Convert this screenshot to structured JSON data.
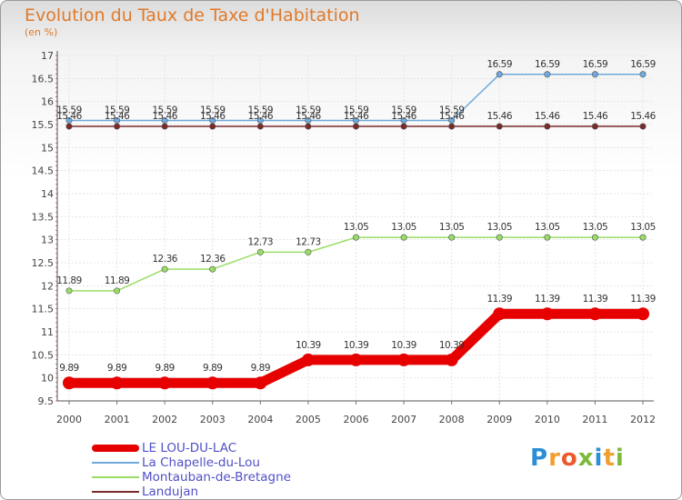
{
  "title": "Evolution du Taux de Taxe d'Habitation",
  "unit_label": "(en %)",
  "logo_text": "Proxiti",
  "chart_data": {
    "type": "line",
    "title": "Evolution du Taux de Taxe d'Habitation",
    "ylabel": "(en %)",
    "xlabel": "",
    "ylim": [
      9.5,
      17
    ],
    "yticks": [
      "9.5",
      "10",
      "10.5",
      "11",
      "11.5",
      "12",
      "12.5",
      "13",
      "13.5",
      "14",
      "14.5",
      "15",
      "15.5",
      "16",
      "16.5",
      "17"
    ],
    "categories": [
      "2000",
      "2001",
      "2002",
      "2003",
      "2004",
      "2005",
      "2006",
      "2007",
      "2008",
      "2009",
      "2010",
      "2011",
      "2012"
    ],
    "grid": true,
    "series": [
      {
        "name": "LE LOU-DU-LAC",
        "color": "#e60000",
        "values": [
          9.89,
          9.89,
          9.89,
          9.89,
          9.89,
          10.39,
          10.39,
          10.39,
          10.39,
          11.39,
          11.39,
          11.39,
          11.39
        ],
        "labels": [
          "9.89",
          "9.89",
          "9.89",
          "9.89",
          "9.89",
          "10.39",
          "10.39",
          "10.39",
          "10.39",
          "11.39",
          "11.39",
          "11.39",
          "11.39"
        ]
      },
      {
        "name": "La Chapelle-du-Lou",
        "color": "#6fa8dc",
        "values": [
          15.59,
          15.59,
          15.59,
          15.59,
          15.59,
          15.59,
          15.59,
          15.59,
          15.59,
          16.59,
          16.59,
          16.59,
          16.59
        ],
        "labels": [
          "15.59",
          "15.59",
          "15.59",
          "15.59",
          "15.59",
          "15.59",
          "15.59",
          "15.59",
          "15.59",
          "16.59",
          "16.59",
          "16.59",
          "16.59"
        ]
      },
      {
        "name": "Montauban-de-Bretagne",
        "color": "#99dd66",
        "values": [
          11.89,
          11.89,
          12.36,
          12.36,
          12.73,
          12.73,
          13.05,
          13.05,
          13.05,
          13.05,
          13.05,
          13.05,
          13.05
        ],
        "labels": [
          "11.89",
          "11.89",
          "12.36",
          "12.36",
          "12.73",
          "12.73",
          "13.05",
          "13.05",
          "13.05",
          "13.05",
          "13.05",
          "13.05",
          "13.05"
        ]
      },
      {
        "name": "Landujan",
        "color": "#7a2a2a",
        "values": [
          15.46,
          15.46,
          15.46,
          15.46,
          15.46,
          15.46,
          15.46,
          15.46,
          15.46,
          15.46,
          15.46,
          15.46,
          15.46
        ],
        "labels": [
          "15.46",
          "15.46",
          "15.46",
          "15.46",
          "15.46",
          "15.46",
          "15.46",
          "15.46",
          "15.46",
          "15.46",
          "15.46",
          "15.46",
          "15.46"
        ]
      }
    ]
  }
}
